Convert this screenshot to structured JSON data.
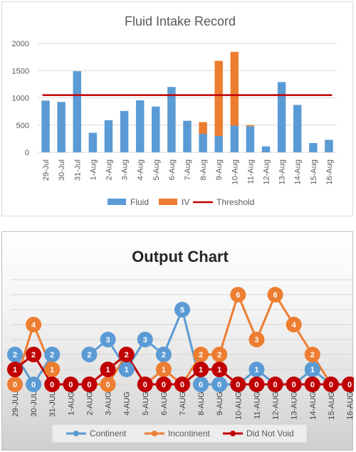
{
  "chart_data": [
    {
      "type": "bar",
      "title": "Fluid Intake Record",
      "categories": [
        "29-Jul",
        "30-Jul",
        "31-Jul",
        "1-Aug",
        "2-Aug",
        "3-Aug",
        "4-Aug",
        "5-Aug",
        "6-Aug",
        "7-Aug",
        "8-Aug",
        "9-Aug",
        "10-Aug",
        "11-Aug",
        "12-Aug",
        "13-Aug",
        "14-Aug",
        "15-Aug",
        "16-Aug"
      ],
      "stacked": true,
      "series": [
        {
          "name": "Fluid",
          "color": "#5b9bd5",
          "values": [
            950,
            925,
            1490,
            360,
            590,
            760,
            955,
            840,
            1200,
            580,
            340,
            300,
            490,
            480,
            110,
            1290,
            870,
            170,
            230
          ]
        },
        {
          "name": "IV",
          "color": "#ed7d31",
          "values": [
            0,
            0,
            0,
            0,
            0,
            0,
            0,
            0,
            0,
            0,
            215,
            1380,
            1355,
            20,
            0,
            0,
            0,
            0,
            0
          ]
        }
      ],
      "threshold": {
        "name": "Threshold",
        "value": 1050,
        "color": "#c00000"
      },
      "ylim": [
        0,
        2000
      ],
      "yticks": [
        0,
        500,
        1000,
        1500,
        2000
      ],
      "legend": "bottom"
    },
    {
      "type": "line",
      "title": "Output Chart",
      "categories": [
        "29-JUL",
        "30-JUL",
        "31-JUL",
        "1-AUG",
        "2-AUG",
        "3-AUG",
        "4-AUG",
        "5-AUG",
        "6-AUG",
        "7-AUG",
        "8-AUG",
        "9-AUG",
        "10-AUG",
        "11-AUG",
        "12-AUG",
        "13-AUG",
        "14-AUG",
        "15-AUG",
        "16-AUG"
      ],
      "series": [
        {
          "name": "Continent",
          "color": "#5b9bd5",
          "values": [
            2,
            0,
            2,
            null,
            2,
            3,
            1,
            3,
            2,
            5,
            0,
            0,
            0,
            1,
            0,
            0,
            1,
            0,
            0
          ]
        },
        {
          "name": "Incontinent",
          "color": "#ed7d31",
          "values": [
            0,
            4,
            1,
            null,
            0,
            0,
            2,
            0,
            1,
            0,
            2,
            2,
            6,
            3,
            6,
            4,
            2,
            0,
            0
          ]
        },
        {
          "name": "Did Not Void",
          "color": "#c00000",
          "values": [
            1,
            2,
            0,
            0,
            0,
            1,
            2,
            0,
            0,
            0,
            1,
            1,
            0,
            0,
            0,
            0,
            0,
            0,
            0
          ]
        }
      ],
      "ylim": [
        0,
        7
      ],
      "legend": "bottom",
      "data_labels": true
    }
  ]
}
